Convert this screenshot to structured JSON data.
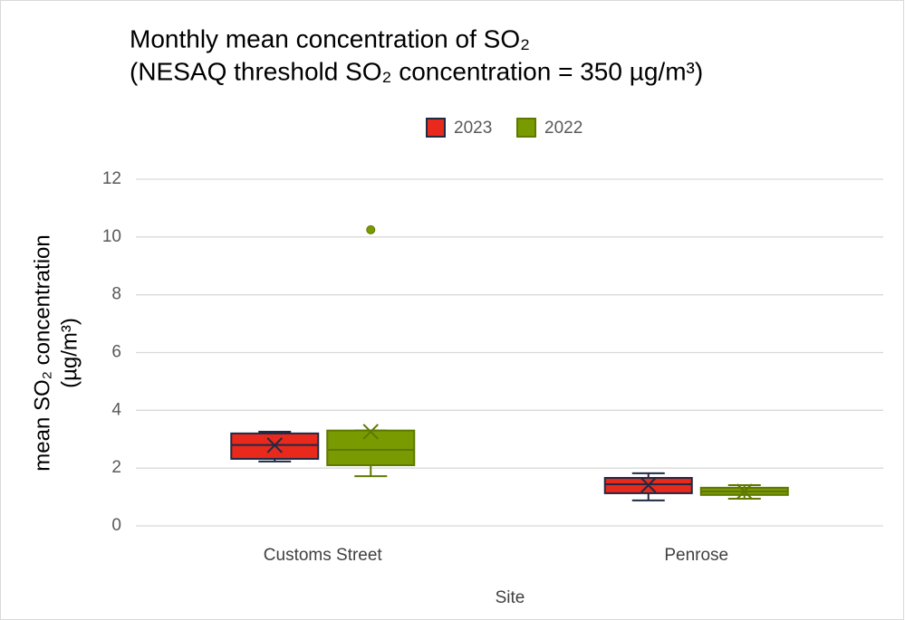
{
  "chart_data": {
    "type": "box",
    "title": [
      "Monthly mean concentration of SO₂",
      "(NESAQ threshold SO₂ concentration = 350 µg/m³)"
    ],
    "xlabel": "Site",
    "ylabel": [
      "mean SO₂ concentration",
      "(µg/m³)"
    ],
    "categories": [
      "Customs Street",
      "Penrose"
    ],
    "series": [
      {
        "name": "2023",
        "color": "#e8291c",
        "stroke": "#1f2a44",
        "boxes": [
          {
            "min": 2.23,
            "q1": 2.32,
            "median": 2.8,
            "q3": 3.2,
            "max": 3.26,
            "mean": 2.79
          },
          {
            "min": 0.88,
            "q1": 1.13,
            "median": 1.44,
            "q3": 1.66,
            "max": 1.82,
            "mean": 1.41
          }
        ]
      },
      {
        "name": "2022",
        "color": "#7a9a01",
        "stroke": "#5f7800",
        "boxes": [
          {
            "min": 1.72,
            "q1": 2.1,
            "median": 2.63,
            "q3": 3.3,
            "max": 3.3,
            "mean": 3.26,
            "outliers": [
              10.25
            ]
          },
          {
            "min": 0.94,
            "q1": 1.07,
            "median": 1.19,
            "q3": 1.32,
            "max": 1.41,
            "mean": 1.19
          }
        ]
      }
    ],
    "ylim": [
      0,
      12
    ],
    "yticks": [
      0,
      2,
      4,
      6,
      8,
      10,
      12
    ],
    "grid": true,
    "legend": "top"
  }
}
